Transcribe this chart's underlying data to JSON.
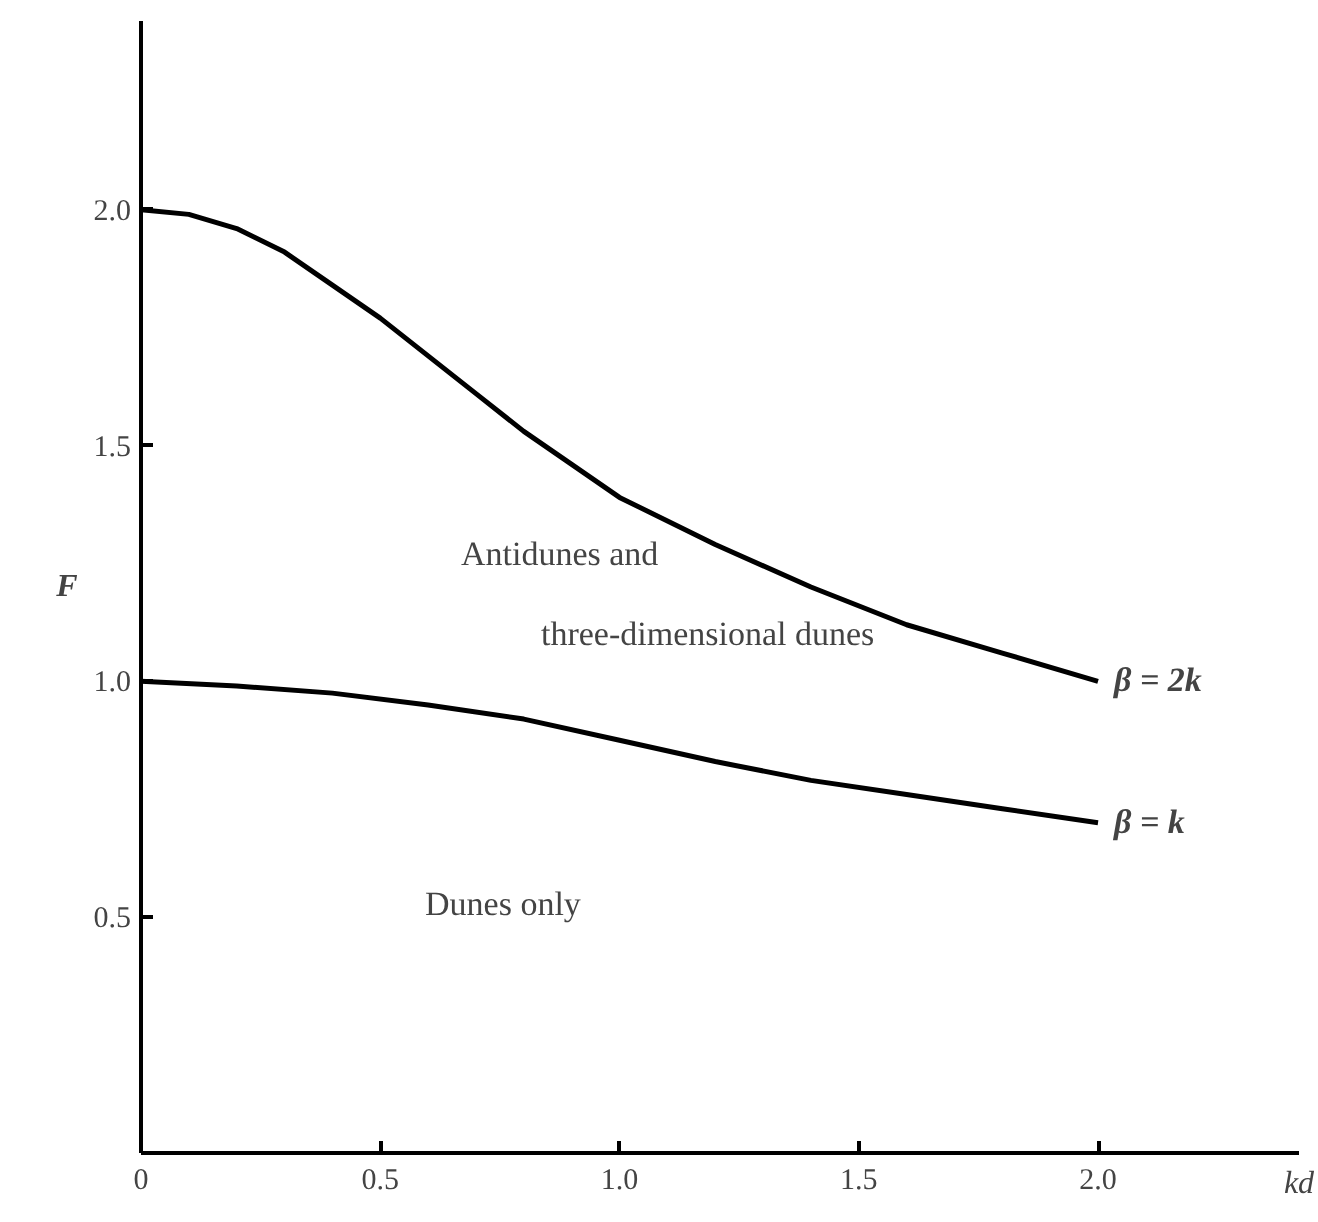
{
  "chart_data": {
    "type": "line",
    "xlabel": "kd",
    "ylabel": "F",
    "x": [
      0,
      0.1,
      0.2,
      0.3,
      0.4,
      0.5,
      0.6,
      0.7,
      0.8,
      0.9,
      1.0,
      1.2,
      1.4,
      1.6,
      1.8,
      2.0
    ],
    "series": [
      {
        "name": "β = 2k",
        "color": "#000000",
        "values": [
          2.0,
          1.99,
          1.96,
          1.91,
          1.84,
          1.77,
          1.69,
          1.61,
          1.53,
          1.46,
          1.39,
          1.29,
          1.2,
          1.12,
          1.06,
          1.0
        ]
      },
      {
        "name": "β = k",
        "color": "#000000",
        "x": [
          0,
          0.2,
          0.4,
          0.6,
          0.8,
          1.0,
          1.2,
          1.4,
          1.6,
          1.8,
          2.0
        ],
        "values": [
          1.0,
          0.99,
          0.975,
          0.95,
          0.92,
          0.875,
          0.83,
          0.79,
          0.76,
          0.73,
          0.7
        ]
      }
    ],
    "annotations": [
      "Antidunes and",
      "three-dimensional dunes",
      "Dunes only"
    ],
    "xlim": [
      0,
      2.42
    ],
    "ylim": [
      0,
      2.4
    ],
    "xticks": [
      0,
      0.5,
      {
        "value": 1.0,
        "label": "1.0"
      },
      1.5,
      {
        "value": 2.0,
        "label": "2.0"
      }
    ],
    "yticks": [
      0.5,
      {
        "value": 1.0,
        "label": "1.0"
      },
      1.5,
      {
        "value": 2.0,
        "label": "2.0"
      }
    ],
    "grid": false,
    "legend": false,
    "marker": "none",
    "line_style": "solid"
  }
}
